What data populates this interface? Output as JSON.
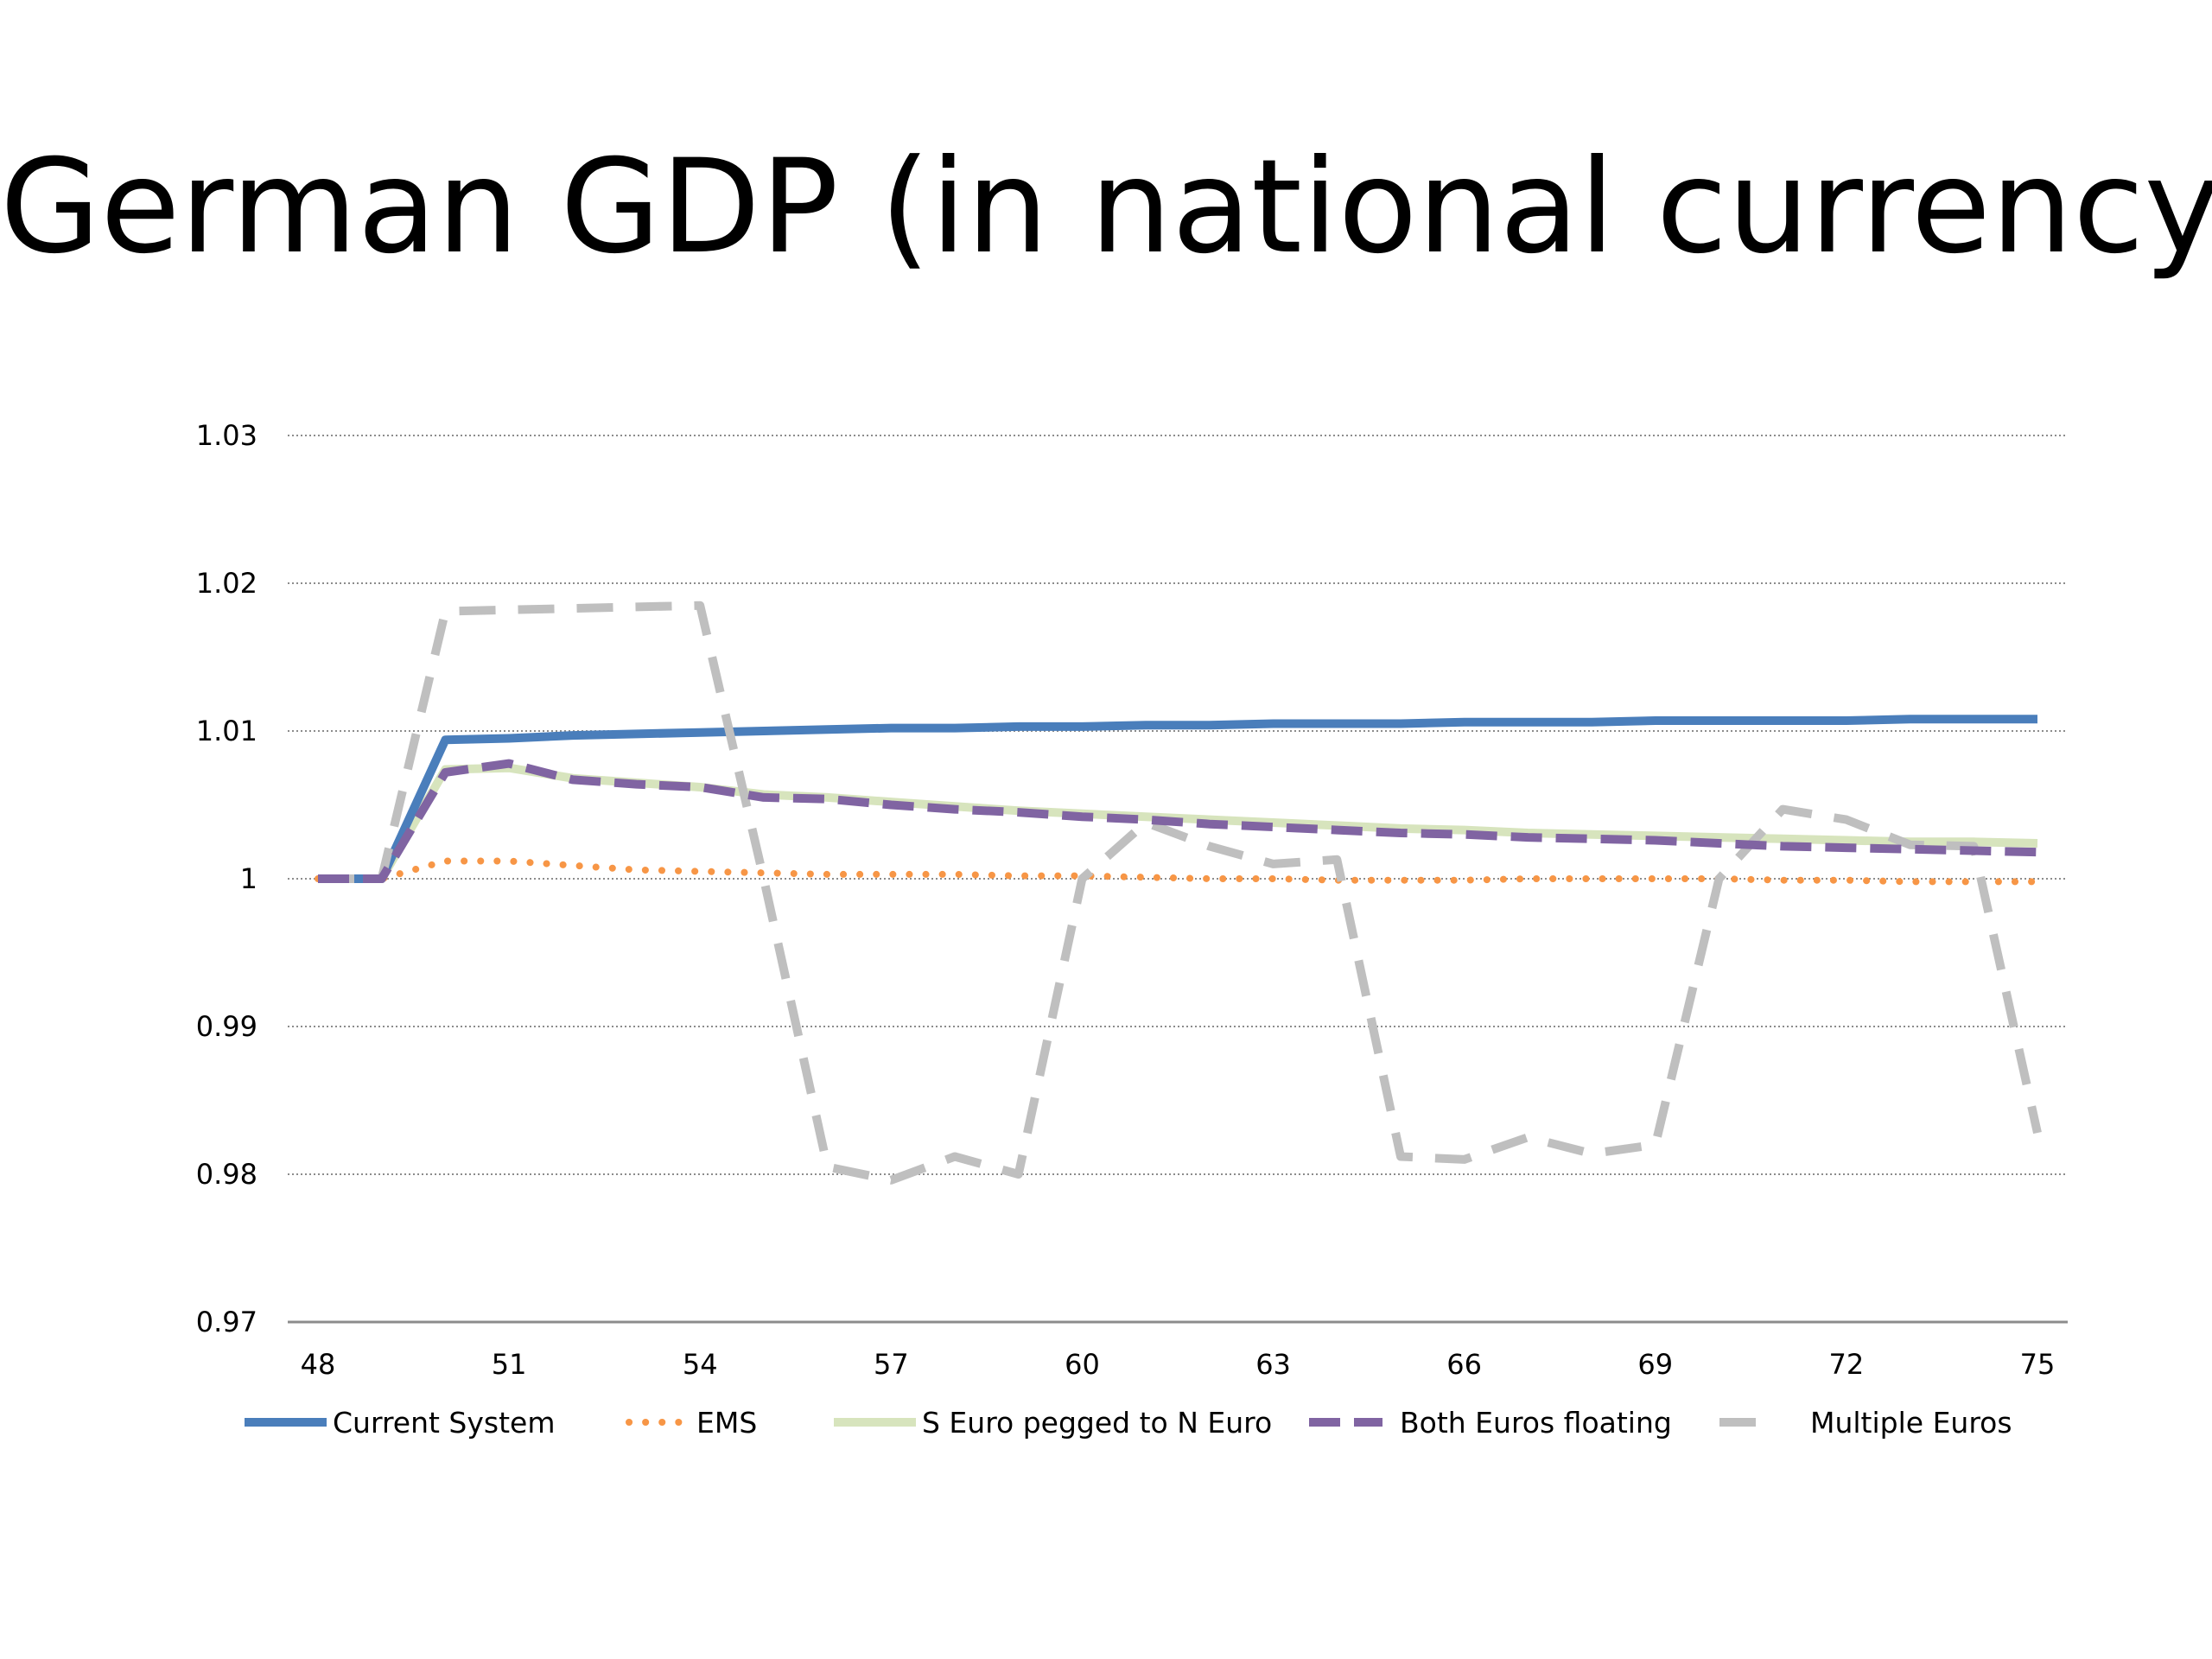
{
  "slide": {
    "title": "German GDP (in national currency)"
  },
  "chart_data": {
    "type": "line",
    "title": "German GDP (in national currency)",
    "xlabel": "",
    "ylabel": "",
    "x": [
      48,
      49,
      50,
      51,
      52,
      53,
      54,
      55,
      56,
      57,
      58,
      59,
      60,
      61,
      62,
      63,
      64,
      65,
      66,
      67,
      68,
      69,
      70,
      71,
      72,
      73,
      74,
      75
    ],
    "x_ticks": [
      "48",
      "51",
      "54",
      "57",
      "60",
      "63",
      "66",
      "69",
      "72",
      "75"
    ],
    "x_tick_values": [
      48,
      51,
      54,
      57,
      60,
      63,
      66,
      69,
      72,
      75
    ],
    "y_ticks": [
      "0.97",
      "0.98",
      "0.99",
      "1",
      "1.01",
      "1.02",
      "1.03"
    ],
    "y_tick_values": [
      0.97,
      0.98,
      0.99,
      1,
      1.01,
      1.02,
      1.03
    ],
    "xlim": [
      48,
      75
    ],
    "ylim": [
      0.97,
      1.03
    ],
    "grid": "horizontal dotted",
    "legend_position": "bottom",
    "series": [
      {
        "name": "Current System",
        "color": "#4a7ebb",
        "style": "solid",
        "values": [
          1.0,
          1.0,
          1.0094,
          1.0095,
          1.0097,
          1.0098,
          1.0099,
          1.01,
          1.0101,
          1.0102,
          1.0102,
          1.0103,
          1.0103,
          1.0104,
          1.0104,
          1.0105,
          1.0105,
          1.0105,
          1.0106,
          1.0106,
          1.0106,
          1.0107,
          1.0107,
          1.0107,
          1.0107,
          1.0108,
          1.0108,
          1.0108
        ]
      },
      {
        "name": "EMS",
        "color": "#f79646",
        "style": "dotted",
        "values": [
          1.0,
          1.0,
          1.0012,
          1.0012,
          1.0009,
          1.0006,
          1.0005,
          1.0004,
          1.0003,
          1.0003,
          1.0003,
          1.0002,
          1.0002,
          1.0001,
          1.0,
          1.0,
          0.9999,
          0.9999,
          0.9999,
          1.0,
          1.0,
          1.0,
          1.0,
          0.9999,
          0.9999,
          0.9998,
          0.9998,
          0.9998
        ]
      },
      {
        "name": "S Euro pegged to N Euro",
        "color": "#d7e4bd",
        "style": "solid",
        "values": [
          1.0,
          1.0,
          1.0074,
          1.0075,
          1.0068,
          1.0065,
          1.0062,
          1.0057,
          1.0055,
          1.0052,
          1.0049,
          1.0046,
          1.0044,
          1.0042,
          1.004,
          1.0038,
          1.0036,
          1.0034,
          1.0033,
          1.0031,
          1.003,
          1.0029,
          1.0028,
          1.0027,
          1.0026,
          1.0025,
          1.0025,
          1.0024
        ]
      },
      {
        "name": "Both Euros floating",
        "color": "#8064a2",
        "style": "dashed",
        "values": [
          1.0,
          1.0,
          1.0072,
          1.0078,
          1.0067,
          1.0064,
          1.0062,
          1.0055,
          1.0054,
          1.005,
          1.0047,
          1.0045,
          1.0042,
          1.004,
          1.0037,
          1.0035,
          1.0033,
          1.0031,
          1.003,
          1.0028,
          1.0027,
          1.0026,
          1.0024,
          1.0022,
          1.0021,
          1.002,
          1.0019,
          1.0018
        ]
      },
      {
        "name": "Multiple Euros",
        "color": "#bfbfbf",
        "style": "dashed",
        "values": [
          1.0,
          1.0,
          1.0181,
          1.0182,
          1.0183,
          1.0184,
          1.0185,
          1.0,
          0.9805,
          0.9796,
          0.9812,
          0.98,
          1.0,
          1.0038,
          1.0022,
          1.001,
          1.0013,
          0.9812,
          0.981,
          0.9825,
          0.9814,
          0.982,
          1.0,
          1.0047,
          1.004,
          1.0023,
          1.0022,
          0.9828
        ]
      }
    ]
  }
}
